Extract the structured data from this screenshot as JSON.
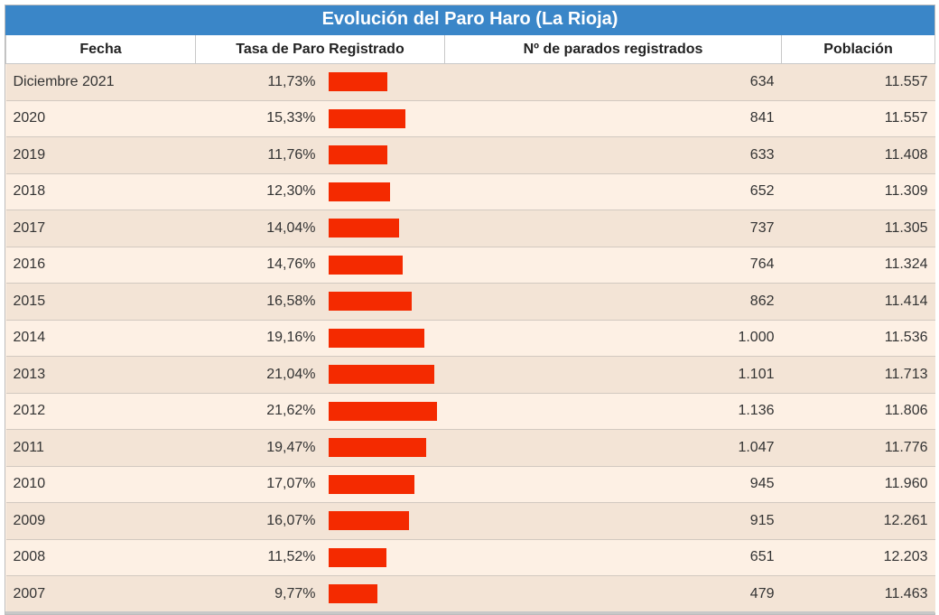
{
  "title": "Evolución del Paro Haro (La Rioja)",
  "headers": {
    "fecha": "Fecha",
    "tasa": "Tasa de Paro Registrado",
    "parados": "Nº de parados registrados",
    "poblacion": "Población"
  },
  "colors": {
    "title_bg": "#3a86c8",
    "bar": "#f42a00",
    "row_odd": "#f3e4d6",
    "row_even": "#fdf0e4"
  },
  "chart_data": {
    "type": "table",
    "columns": [
      "Fecha",
      "Tasa de Paro Registrado",
      "Nº de parados registrados",
      "Población"
    ],
    "rows": [
      {
        "fecha": "Diciembre 2021",
        "tasa": "11,73%",
        "tasa_value": 11.73,
        "parados": "634",
        "poblacion": "11.557"
      },
      {
        "fecha": "2020",
        "tasa": "15,33%",
        "tasa_value": 15.33,
        "parados": "841",
        "poblacion": "11.557"
      },
      {
        "fecha": "2019",
        "tasa": "11,76%",
        "tasa_value": 11.76,
        "parados": "633",
        "poblacion": "11.408"
      },
      {
        "fecha": "2018",
        "tasa": "12,30%",
        "tasa_value": 12.3,
        "parados": "652",
        "poblacion": "11.309"
      },
      {
        "fecha": "2017",
        "tasa": "14,04%",
        "tasa_value": 14.04,
        "parados": "737",
        "poblacion": "11.305"
      },
      {
        "fecha": "2016",
        "tasa": "14,76%",
        "tasa_value": 14.76,
        "parados": "764",
        "poblacion": "11.324"
      },
      {
        "fecha": "2015",
        "tasa": "16,58%",
        "tasa_value": 16.58,
        "parados": "862",
        "poblacion": "11.414"
      },
      {
        "fecha": "2014",
        "tasa": "19,16%",
        "tasa_value": 19.16,
        "parados": "1.000",
        "poblacion": "11.536"
      },
      {
        "fecha": "2013",
        "tasa": "21,04%",
        "tasa_value": 21.04,
        "parados": "1.101",
        "poblacion": "11.713"
      },
      {
        "fecha": "2012",
        "tasa": "21,62%",
        "tasa_value": 21.62,
        "parados": "1.136",
        "poblacion": "11.806"
      },
      {
        "fecha": "2011",
        "tasa": "19,47%",
        "tasa_value": 19.47,
        "parados": "1.047",
        "poblacion": "11.776"
      },
      {
        "fecha": "2010",
        "tasa": "17,07%",
        "tasa_value": 17.07,
        "parados": "945",
        "poblacion": "11.960"
      },
      {
        "fecha": "2009",
        "tasa": "16,07%",
        "tasa_value": 16.07,
        "parados": "915",
        "poblacion": "12.261"
      },
      {
        "fecha": "2008",
        "tasa": "11,52%",
        "tasa_value": 11.52,
        "parados": "651",
        "poblacion": "12.203"
      },
      {
        "fecha": "2007",
        "tasa": "9,77%",
        "tasa_value": 9.77,
        "parados": "479",
        "poblacion": "11.463"
      }
    ]
  }
}
